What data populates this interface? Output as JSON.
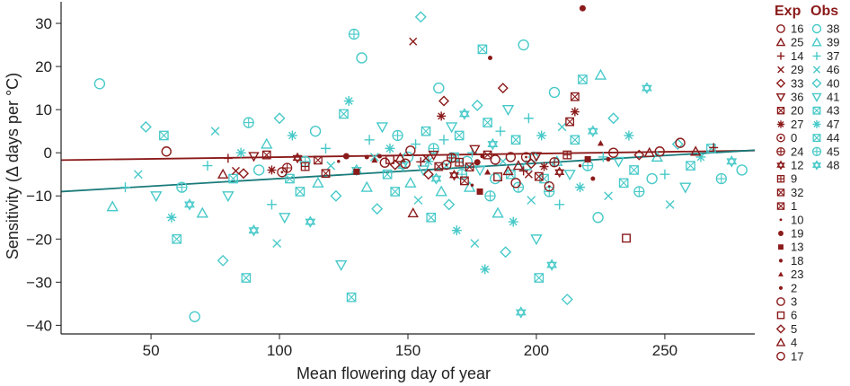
{
  "chart_data": {
    "type": "scatter",
    "title": "",
    "xlabel": "Mean flowering day of year",
    "ylabel": "Sensitivity (Δ days per °C)",
    "xlim": [
      15,
      285
    ],
    "ylim": [
      -42,
      35
    ],
    "xticks": [
      50,
      100,
      150,
      200,
      250
    ],
    "yticks": [
      -40,
      -30,
      -20,
      -10,
      0,
      10,
      20,
      30
    ],
    "grid": false,
    "legend_placement": "right",
    "legend": {
      "headers": [
        "Exp",
        "Obs"
      ],
      "exp_ids": [
        "16",
        "25",
        "14",
        "29",
        "33",
        "36",
        "20",
        "27",
        "0",
        "24",
        "12",
        "9",
        "32",
        "1",
        "10",
        "19",
        "13",
        "18",
        "23",
        "2",
        "3",
        "6",
        "5",
        "4",
        "17"
      ],
      "obs_ids": [
        "38",
        "39",
        "37",
        "46",
        "40",
        "41",
        "43",
        "47",
        "44",
        "45",
        "48"
      ]
    },
    "colors": {
      "experimental": "#8b1a1a",
      "observational": "#48c9c9",
      "obs_fit": "#1a7a7a"
    },
    "series": [
      {
        "name": "Exp",
        "points": [
          [
            56,
            0.3
          ],
          [
            78,
            -5
          ],
          [
            80,
            -1.3
          ],
          [
            83,
            -4.2
          ],
          [
            86,
            -4.8
          ],
          [
            90,
            -0.8
          ],
          [
            95,
            -0.5
          ],
          [
            97,
            -4
          ],
          [
            101,
            -4.5
          ],
          [
            103,
            -3.5
          ],
          [
            107,
            -1.2
          ],
          [
            110,
            -3.2
          ],
          [
            115,
            -1.7
          ],
          [
            118,
            -4.8
          ],
          [
            123,
            -2
          ],
          [
            126,
            -0.8
          ],
          [
            130,
            -4.4
          ],
          [
            134,
            -1
          ],
          [
            137,
            -1.7
          ],
          [
            139,
            -0.8
          ],
          [
            141,
            -2.3
          ],
          [
            143,
            -1.6
          ],
          [
            145,
            -2.8
          ],
          [
            147,
            -1.2
          ],
          [
            149,
            -2.5
          ],
          [
            151,
            0.5
          ],
          [
            152,
            -14
          ],
          [
            155,
            -2.1
          ],
          [
            157,
            -1.2
          ],
          [
            158,
            -5
          ],
          [
            160,
            -0.5
          ],
          [
            162,
            -3.2
          ],
          [
            163,
            8.5
          ],
          [
            165,
            -2.8
          ],
          [
            167,
            -1.2
          ],
          [
            168,
            -5.2
          ],
          [
            170,
            -2.2
          ],
          [
            172,
            -6.5
          ],
          [
            174,
            -3.3
          ],
          [
            175,
            -7.5
          ],
          [
            177,
            -2.2
          ],
          [
            178,
            -9
          ],
          [
            179,
            -0.8
          ],
          [
            181,
            -4.5
          ],
          [
            182,
            22
          ],
          [
            184,
            -1.6
          ],
          [
            185,
            -5.6
          ],
          [
            187,
            15
          ],
          [
            189,
            -4.2
          ],
          [
            190,
            -1
          ],
          [
            192,
            -7
          ],
          [
            193,
            -3
          ],
          [
            195,
            -4.2
          ],
          [
            197,
            -5
          ],
          [
            198,
            -2.5
          ],
          [
            200,
            -0.8
          ],
          [
            201,
            -5.5
          ],
          [
            203,
            -3.2
          ],
          [
            205,
            -7.8
          ],
          [
            207,
            -2.2
          ],
          [
            209,
            -4.5
          ],
          [
            212,
            -0.5
          ],
          [
            213,
            7.2
          ],
          [
            215,
            13
          ],
          [
            217,
            -3
          ],
          [
            218,
            33.5
          ],
          [
            220,
            -1.5
          ],
          [
            222,
            -6
          ],
          [
            225,
            2.2
          ],
          [
            228,
            -1.5
          ],
          [
            230,
            0
          ],
          [
            235,
            -19.8
          ],
          [
            240,
            -0.5
          ],
          [
            244,
            0
          ],
          [
            248,
            0.3
          ],
          [
            256,
            2.3
          ],
          [
            262,
            0.3
          ],
          [
            269,
            1.2
          ],
          [
            152,
            25.8
          ],
          [
            164,
            12
          ],
          [
            176,
            0.8
          ],
          [
            181,
            -0.5
          ],
          [
            215,
            9.5
          ],
          [
            196,
            -1
          ]
        ]
      },
      {
        "name": "Obs",
        "points": [
          [
            30,
            16
          ],
          [
            35,
            -12.5
          ],
          [
            40,
            -8
          ],
          [
            45,
            -5
          ],
          [
            48,
            6
          ],
          [
            52,
            -10
          ],
          [
            55,
            4
          ],
          [
            58,
            -15
          ],
          [
            60,
            -20
          ],
          [
            62,
            -8
          ],
          [
            65,
            -12
          ],
          [
            67,
            -38
          ],
          [
            70,
            -14
          ],
          [
            72,
            -3
          ],
          [
            75,
            5
          ],
          [
            78,
            -25
          ],
          [
            80,
            -10
          ],
          [
            82,
            -6
          ],
          [
            85,
            0
          ],
          [
            87,
            -29
          ],
          [
            88,
            7
          ],
          [
            90,
            -18
          ],
          [
            92,
            -4
          ],
          [
            95,
            2
          ],
          [
            97,
            -12
          ],
          [
            99,
            -21
          ],
          [
            100,
            8
          ],
          [
            102,
            -15
          ],
          [
            104,
            -6
          ],
          [
            105,
            4
          ],
          [
            108,
            -9
          ],
          [
            110,
            -2
          ],
          [
            112,
            -16
          ],
          [
            114,
            5
          ],
          [
            115,
            -7
          ],
          [
            118,
            1
          ],
          [
            120,
            -3
          ],
          [
            122,
            -10
          ],
          [
            124,
            -26
          ],
          [
            125,
            9
          ],
          [
            127,
            12
          ],
          [
            128,
            -33.5
          ],
          [
            129,
            27.5
          ],
          [
            130,
            -4
          ],
          [
            132,
            22
          ],
          [
            134,
            -8
          ],
          [
            135,
            3
          ],
          [
            137,
            -1
          ],
          [
            138,
            -13
          ],
          [
            140,
            6
          ],
          [
            142,
            -5
          ],
          [
            143,
            1
          ],
          [
            145,
            -9
          ],
          [
            146,
            4
          ],
          [
            148,
            -3
          ],
          [
            150,
            -1
          ],
          [
            151,
            -7
          ],
          [
            153,
            2
          ],
          [
            154,
            -11
          ],
          [
            155,
            31.5
          ],
          [
            156,
            -4
          ],
          [
            157,
            5
          ],
          [
            158,
            -2
          ],
          [
            159,
            -15
          ],
          [
            160,
            1
          ],
          [
            161,
            -6
          ],
          [
            162,
            15
          ],
          [
            163,
            -9
          ],
          [
            164,
            3
          ],
          [
            165,
            -3
          ],
          [
            166,
            -12
          ],
          [
            167,
            6
          ],
          [
            168,
            -1
          ],
          [
            169,
            -18
          ],
          [
            170,
            4
          ],
          [
            171,
            -5
          ],
          [
            172,
            9
          ],
          [
            173,
            -2
          ],
          [
            174,
            -8
          ],
          [
            175,
            0
          ],
          [
            176,
            -21
          ],
          [
            177,
            11
          ],
          [
            178,
            -4
          ],
          [
            179,
            24
          ],
          [
            180,
            -27
          ],
          [
            181,
            7
          ],
          [
            182,
            -10
          ],
          [
            183,
            2
          ],
          [
            184,
            -6
          ],
          [
            185,
            -14
          ],
          [
            186,
            5
          ],
          [
            187,
            -2
          ],
          [
            188,
            -23
          ],
          [
            189,
            10
          ],
          [
            190,
            -5
          ],
          [
            191,
            -16
          ],
          [
            192,
            3
          ],
          [
            193,
            -8
          ],
          [
            194,
            -37
          ],
          [
            195,
            25
          ],
          [
            196,
            -3
          ],
          [
            197,
            8
          ],
          [
            198,
            -11
          ],
          [
            199,
            -1
          ],
          [
            200,
            -20
          ],
          [
            201,
            -29
          ],
          [
            202,
            4
          ],
          [
            203,
            -6
          ],
          [
            205,
            -9
          ],
          [
            206,
            -26
          ],
          [
            207,
            14
          ],
          [
            208,
            -2
          ],
          [
            209,
            -12
          ],
          [
            210,
            6
          ],
          [
            212,
            -34
          ],
          [
            213,
            -5
          ],
          [
            215,
            3
          ],
          [
            217,
            -8
          ],
          [
            218,
            17
          ],
          [
            220,
            -3
          ],
          [
            222,
            5
          ],
          [
            224,
            -15
          ],
          [
            225,
            18
          ],
          [
            226,
            -1
          ],
          [
            228,
            -10
          ],
          [
            230,
            8
          ],
          [
            232,
            -2
          ],
          [
            234,
            -7
          ],
          [
            236,
            4
          ],
          [
            238,
            -4
          ],
          [
            240,
            -9
          ],
          [
            243,
            15
          ],
          [
            245,
            -6
          ],
          [
            247,
            -1
          ],
          [
            250,
            -5
          ],
          [
            252,
            -12
          ],
          [
            255,
            2
          ],
          [
            258,
            -8
          ],
          [
            260,
            -3
          ],
          [
            264,
            -1
          ],
          [
            268,
            1
          ],
          [
            272,
            -6
          ],
          [
            276,
            -2
          ],
          [
            280,
            -4
          ]
        ]
      }
    ],
    "fits": [
      {
        "name": "Exp",
        "x": [
          15,
          285
        ],
        "y": [
          -1.7,
          0.5
        ]
      },
      {
        "name": "Obs",
        "x": [
          15,
          285
        ],
        "y": [
          -9,
          0.6
        ]
      }
    ]
  }
}
